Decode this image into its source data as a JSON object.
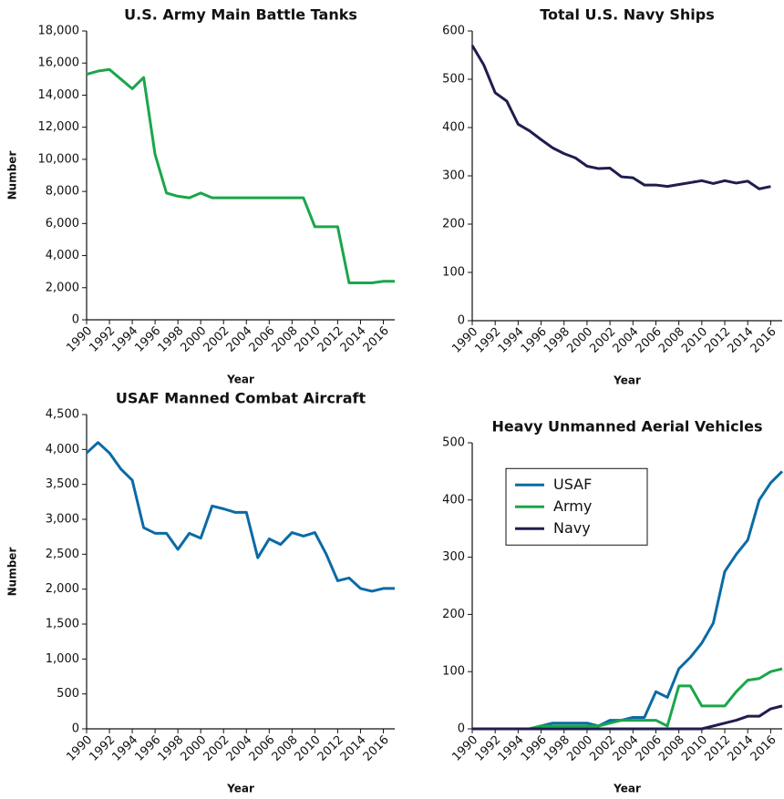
{
  "chart_data": [
    {
      "type": "line",
      "title": "U.S. Army Main Battle Tanks",
      "xlabel": "Year",
      "ylabel": "Number",
      "x": [
        1990,
        1991,
        1992,
        1993,
        1994,
        1995,
        1996,
        1997,
        1998,
        1999,
        2000,
        2001,
        2002,
        2003,
        2004,
        2005,
        2006,
        2007,
        2008,
        2009,
        2010,
        2011,
        2012,
        2013,
        2014,
        2015,
        2016,
        2017
      ],
      "values": [
        15300,
        15500,
        15600,
        15000,
        14400,
        15100,
        10300,
        7900,
        7700,
        7600,
        7900,
        7600,
        7600,
        7600,
        7600,
        7600,
        7600,
        7600,
        7600,
        7600,
        5800,
        5800,
        5800,
        2300,
        2300,
        2300,
        2400,
        2400
      ],
      "color": "#1aa64a",
      "xlim": [
        1990,
        2017
      ],
      "xticks": [
        1990,
        1992,
        1994,
        1996,
        1998,
        2000,
        2002,
        2004,
        2006,
        2008,
        2010,
        2012,
        2014,
        2016
      ],
      "ylim": [
        0,
        18000
      ],
      "yticks": [
        0,
        {
          "value": 2000,
          "label": "2,000"
        },
        {
          "value": 4000,
          "label": "4,000"
        },
        {
          "value": 6000,
          "label": "6,000"
        },
        {
          "value": 8000,
          "label": "8,000"
        },
        {
          "value": 10000,
          "label": "10,000"
        },
        {
          "value": 12000,
          "label": "12,000"
        },
        {
          "value": 14000,
          "label": "14,000"
        },
        {
          "value": 16000,
          "label": "16,000"
        },
        {
          "value": 18000,
          "label": "18,000"
        }
      ]
    },
    {
      "type": "line",
      "title": "Total U.S. Navy Ships",
      "xlabel": "Year",
      "x": [
        1990,
        1991,
        1992,
        1993,
        1994,
        1995,
        1996,
        1997,
        1998,
        1999,
        2000,
        2001,
        2002,
        2003,
        2004,
        2005,
        2006,
        2007,
        2008,
        2009,
        2010,
        2011,
        2012,
        2013,
        2014,
        2015,
        2016
      ],
      "values": [
        570,
        530,
        472,
        455,
        407,
        393,
        375,
        358,
        346,
        337,
        320,
        315,
        316,
        298,
        296,
        281,
        281,
        278,
        282,
        286,
        290,
        284,
        290,
        285,
        289,
        273,
        278
      ],
      "color": "#1f1d4f",
      "xlim": [
        1990,
        2017
      ],
      "xticks": [
        1990,
        1992,
        1994,
        1996,
        1998,
        2000,
        2002,
        2004,
        2006,
        2008,
        2010,
        2012,
        2014,
        2016
      ],
      "ylim": [
        0,
        600
      ],
      "yticks": [
        0,
        100,
        200,
        300,
        400,
        500,
        600
      ]
    },
    {
      "type": "line",
      "title": "USAF Manned Combat Aircraft",
      "xlabel": "Year",
      "ylabel": "Number",
      "x": [
        1990,
        1991,
        1992,
        1993,
        1994,
        1995,
        1996,
        1997,
        1998,
        1999,
        2000,
        2001,
        2002,
        2003,
        2004,
        2005,
        2006,
        2007,
        2008,
        2009,
        2010,
        2011,
        2012,
        2013,
        2014,
        2015,
        2016,
        2017
      ],
      "values": [
        3950,
        4100,
        3950,
        3720,
        3560,
        2880,
        2800,
        2800,
        2570,
        2800,
        2730,
        3190,
        3150,
        3100,
        3100,
        2450,
        2720,
        2640,
        2810,
        2760,
        2810,
        2500,
        2120,
        2160,
        2010,
        1970,
        2010,
        2010
      ],
      "color": "#0b6aa6",
      "xlim": [
        1990,
        2017
      ],
      "xticks": [
        1990,
        1992,
        1994,
        1996,
        1998,
        2000,
        2002,
        2004,
        2006,
        2008,
        2010,
        2012,
        2014,
        2016
      ],
      "ylim": [
        0,
        4500
      ],
      "yticks": [
        0,
        500,
        {
          "value": 1000,
          "label": "1,000"
        },
        {
          "value": 1500,
          "label": "1,500"
        },
        {
          "value": 2000,
          "label": "2,000"
        },
        {
          "value": 2500,
          "label": "2,500"
        },
        {
          "value": 3000,
          "label": "3,000"
        },
        {
          "value": 3500,
          "label": "3,500"
        },
        {
          "value": 4000,
          "label": "4,000"
        },
        {
          "value": 4500,
          "label": "4,500"
        }
      ]
    },
    {
      "type": "line",
      "title": "Heavy Unmanned Aerial Vehicles",
      "xlabel": "Year",
      "x": [
        1990,
        1991,
        1992,
        1993,
        1994,
        1995,
        1996,
        1997,
        1998,
        1999,
        2000,
        2001,
        2002,
        2003,
        2004,
        2005,
        2006,
        2007,
        2008,
        2009,
        2010,
        2011,
        2012,
        2013,
        2014,
        2015,
        2016,
        2017
      ],
      "series": [
        {
          "name": "USAF",
          "color": "#0b6aa6",
          "values": [
            0,
            0,
            0,
            0,
            0,
            0,
            5,
            10,
            10,
            10,
            10,
            5,
            15,
            15,
            20,
            20,
            65,
            55,
            105,
            125,
            150,
            185,
            275,
            305,
            330,
            400,
            430,
            450
          ]
        },
        {
          "name": "Army",
          "color": "#1aa64a",
          "values": [
            0,
            0,
            0,
            0,
            0,
            0,
            5,
            5,
            5,
            5,
            5,
            5,
            10,
            15,
            15,
            15,
            15,
            5,
            75,
            75,
            40,
            40,
            40,
            65,
            85,
            88,
            100,
            105
          ]
        },
        {
          "name": "Navy",
          "color": "#1f1d4f",
          "values": [
            0,
            0,
            0,
            0,
            0,
            0,
            0,
            0,
            0,
            0,
            0,
            0,
            0,
            0,
            0,
            0,
            0,
            0,
            0,
            0,
            0,
            5,
            10,
            15,
            22,
            22,
            35,
            40
          ]
        }
      ],
      "legend": "center left",
      "xlim": [
        1990,
        2017
      ],
      "xticks": [
        1990,
        1992,
        1994,
        1996,
        1998,
        2000,
        2002,
        2004,
        2006,
        2008,
        2010,
        2012,
        2014,
        2016
      ],
      "ylim": [
        0,
        500
      ],
      "yticks": [
        0,
        100,
        200,
        300,
        400,
        500
      ]
    }
  ]
}
